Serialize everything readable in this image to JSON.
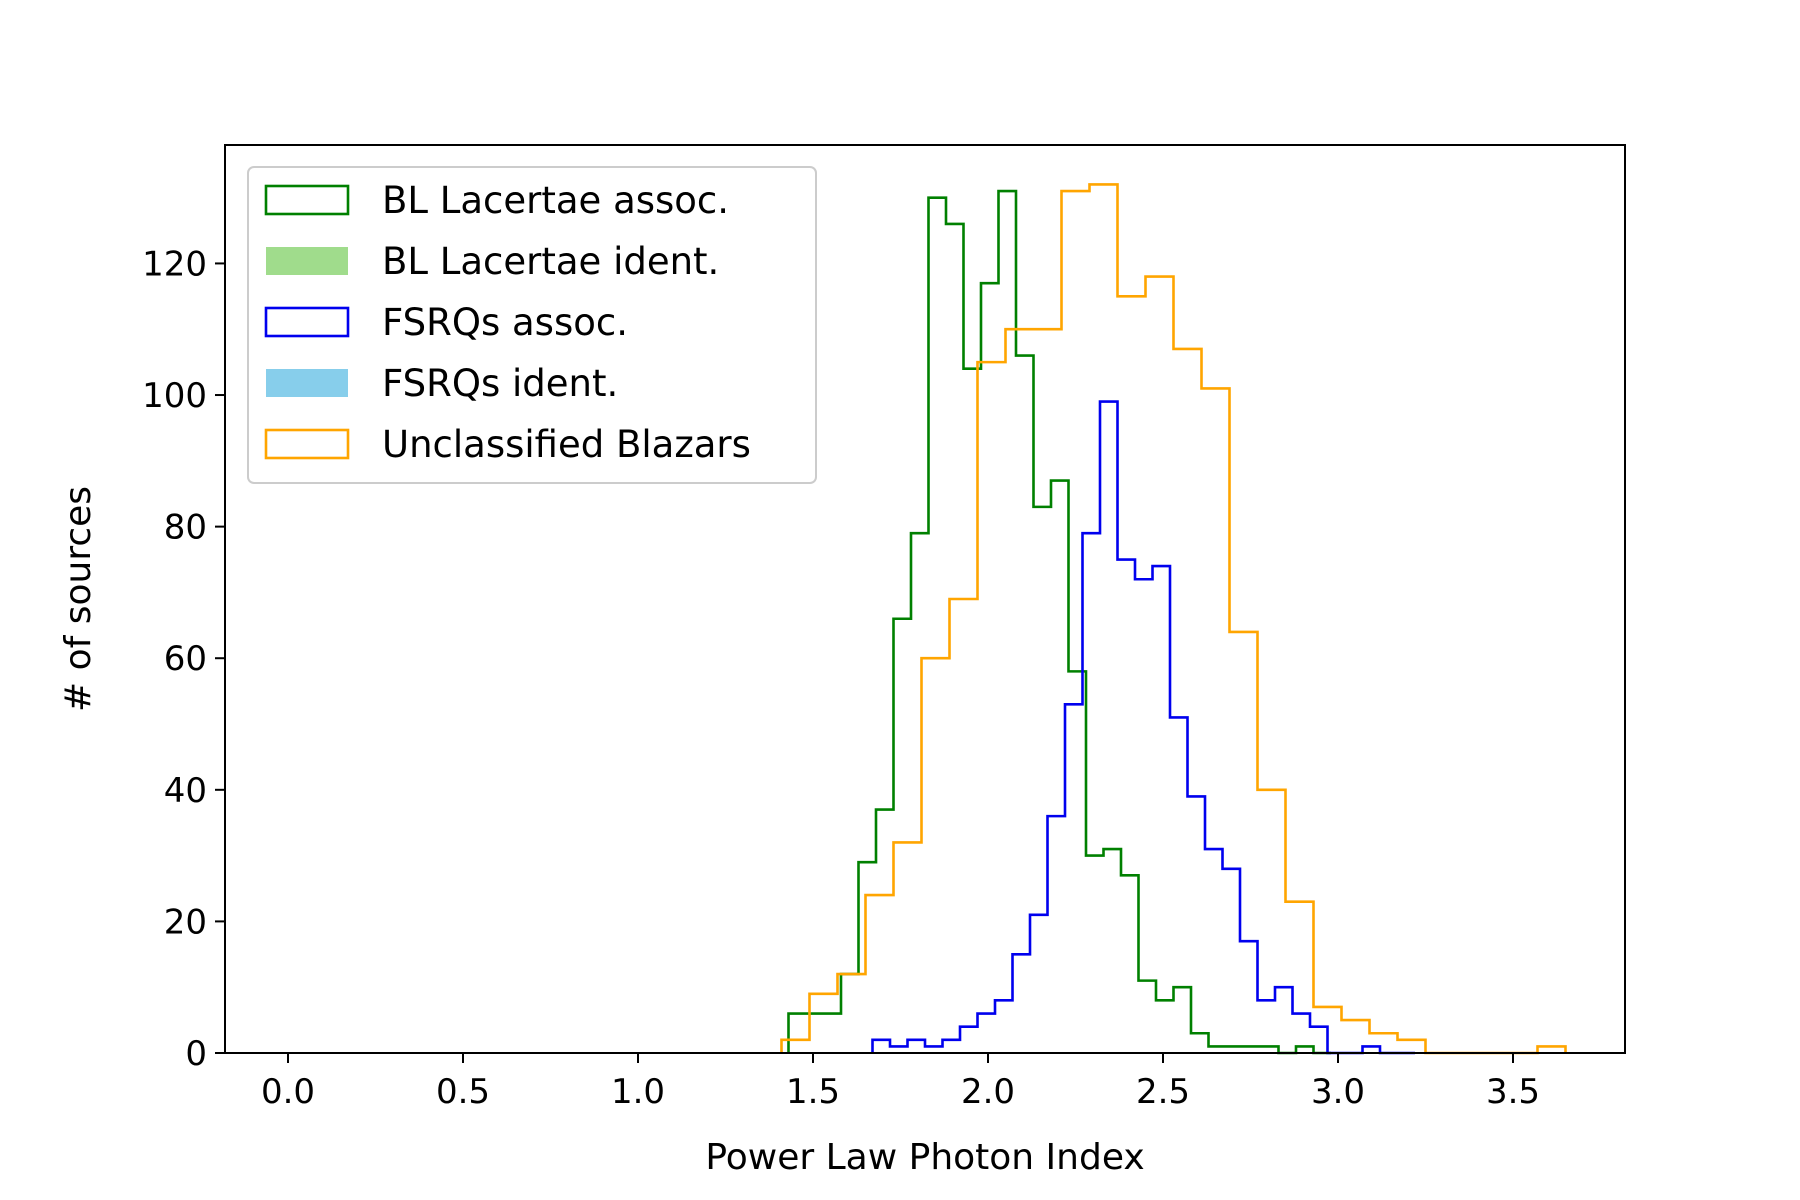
{
  "chart_data": {
    "type": "histogram",
    "title": "",
    "xlabel": "Power Law Photon Index",
    "ylabel": "# of sources",
    "xlim": [
      -0.18,
      3.82
    ],
    "ylim": [
      0,
      138
    ],
    "xticks": [
      0.0,
      0.5,
      1.0,
      1.5,
      2.0,
      2.5,
      3.0,
      3.5
    ],
    "xtick_labels": [
      "0.0",
      "0.5",
      "1.0",
      "1.5",
      "2.0",
      "2.5",
      "3.0",
      "3.5"
    ],
    "yticks": [
      0,
      20,
      40,
      60,
      80,
      100,
      120
    ],
    "ytick_labels": [
      "0",
      "20",
      "40",
      "60",
      "80",
      "100",
      "120"
    ],
    "legend_position": "top-left",
    "grid": false,
    "series": [
      {
        "name": "BL Lacertae assoc.",
        "style": "step",
        "color": "#008000",
        "edges": [
          1.43,
          1.48,
          1.53,
          1.58,
          1.63,
          1.68,
          1.73,
          1.78,
          1.83,
          1.88,
          1.93,
          1.98,
          2.03,
          2.08,
          2.13,
          2.18,
          2.23,
          2.28,
          2.33,
          2.38,
          2.43,
          2.48,
          2.53,
          2.58,
          2.63,
          2.68,
          2.73,
          2.78,
          2.83,
          2.88,
          2.93,
          2.98
        ],
        "counts": [
          6,
          6,
          6,
          12,
          29,
          37,
          66,
          79,
          130,
          126,
          104,
          117,
          131,
          106,
          83,
          87,
          58,
          30,
          31,
          27,
          11,
          8,
          10,
          3,
          1,
          1,
          1,
          1,
          0,
          1,
          0
        ]
      },
      {
        "name": "BL Lacertae ident.",
        "style": "filled",
        "color": "#a0dc8c",
        "edges": [],
        "counts": []
      },
      {
        "name": "FSRQs assoc.",
        "style": "step",
        "color": "#0000ee",
        "edges": [
          1.67,
          1.72,
          1.77,
          1.82,
          1.87,
          1.92,
          1.97,
          2.02,
          2.07,
          2.12,
          2.17,
          2.22,
          2.27,
          2.32,
          2.37,
          2.42,
          2.47,
          2.52,
          2.57,
          2.62,
          2.67,
          2.72,
          2.77,
          2.82,
          2.87,
          2.92,
          2.97,
          3.02,
          3.07,
          3.12,
          3.17,
          3.22
        ],
        "counts": [
          2,
          1,
          2,
          1,
          2,
          4,
          6,
          8,
          15,
          21,
          36,
          53,
          79,
          99,
          75,
          72,
          74,
          51,
          39,
          31,
          28,
          17,
          8,
          10,
          6,
          4,
          0,
          0,
          1,
          0,
          0
        ]
      },
      {
        "name": "FSRQs ident.",
        "style": "filled",
        "color": "#87ceeb",
        "edges": [],
        "counts": []
      },
      {
        "name": "Unclassified Blazars",
        "style": "step",
        "color": "#ffa500",
        "edges": [
          1.41,
          1.49,
          1.57,
          1.65,
          1.73,
          1.81,
          1.89,
          1.97,
          2.05,
          2.13,
          2.21,
          2.29,
          2.37,
          2.45,
          2.53,
          2.61,
          2.69,
          2.77,
          2.85,
          2.93,
          3.01,
          3.09,
          3.17,
          3.25,
          3.33,
          3.41,
          3.49,
          3.57,
          3.65
        ],
        "counts": [
          2,
          9,
          12,
          24,
          32,
          60,
          69,
          105,
          110,
          110,
          131,
          132,
          115,
          118,
          107,
          101,
          64,
          40,
          23,
          7,
          5,
          3,
          2,
          0,
          0,
          0,
          0,
          1
        ]
      }
    ]
  }
}
